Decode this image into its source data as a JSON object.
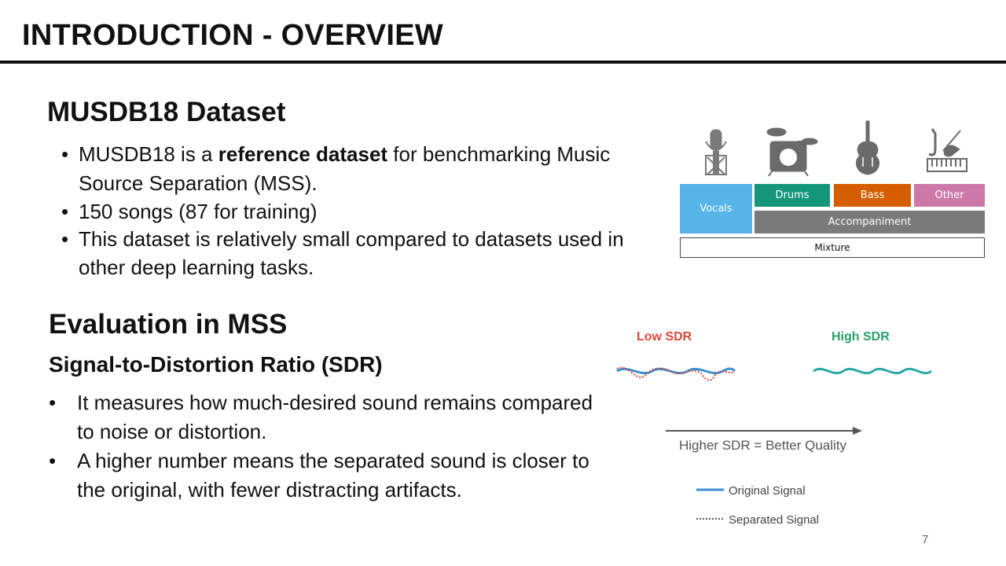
{
  "slide": {
    "title": "INTRODUCTION - OVERVIEW",
    "page_number": "7"
  },
  "section1": {
    "heading": "MUSDB18 Dataset",
    "bullets": {
      "b1_pre": "MUSDB18 is a ",
      "b1_bold": "reference dataset",
      "b1_post": " for benchmarking Music Source Separation (MSS).",
      "b2": "150 songs (87 for training)",
      "b3": "This dataset is relatively small compared to datasets used in other deep learning tasks."
    }
  },
  "section2": {
    "heading": "Evaluation in MSS",
    "subheading": "Signal-to-Distortion Ratio (SDR)",
    "bullets": {
      "b1": "It measures how much-desired sound remains compared to noise or distortion.",
      "b2": "A higher number means the separated sound is closer to the original, with fewer distracting artifacts."
    }
  },
  "dataset_diagram": {
    "vocals": "Vocals",
    "drums": "Drums",
    "bass": "Bass",
    "other": "Other",
    "accompaniment": "Accompaniment",
    "mixture": "Mixture",
    "icons": [
      "microphone-icon",
      "drum-kit-icon",
      "double-bass-icon",
      "saxophone-violin-keyboard-icon"
    ],
    "colors": {
      "vocals": "#56b4e9",
      "drums": "#14967a",
      "bass": "#d55e00",
      "other": "#cc79a7",
      "accompaniment": "#7a7a7a"
    }
  },
  "sdr_illustration": {
    "low_label": "Low SDR",
    "high_label": "High SDR",
    "arrow_label": "Higher SDR = Better Quality",
    "legend_original": "Original Signal",
    "legend_separated": "Separated Signal",
    "colors": {
      "low": "#d9473a",
      "high": "#27a36a",
      "original": "#3a8fd0",
      "separated": "#d9473a",
      "high_wave": "#2aa7a5"
    }
  }
}
